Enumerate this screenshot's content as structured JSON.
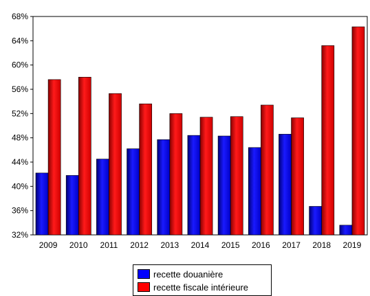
{
  "chart_data": {
    "type": "bar",
    "categories": [
      "2009",
      "2010",
      "2011",
      "2012",
      "2013",
      "2014",
      "2015",
      "2016",
      "2017",
      "2018",
      "2019"
    ],
    "series": [
      {
        "name": "recette douanière",
        "color": "#0000ff",
        "values": [
          42.2,
          41.8,
          44.5,
          46.2,
          47.7,
          48.4,
          48.3,
          46.4,
          48.6,
          36.7,
          33.6
        ]
      },
      {
        "name": "recette fiscale intérieure",
        "color": "#ff0000",
        "values": [
          57.6,
          58.0,
          55.3,
          53.6,
          52.0,
          51.4,
          51.5,
          53.4,
          51.3,
          63.2,
          66.3
        ]
      }
    ],
    "ylim": [
      32,
      68
    ],
    "yticks": [
      32,
      36,
      40,
      44,
      48,
      52,
      56,
      60,
      64,
      68
    ],
    "ytick_labels": [
      "32%",
      "36%",
      "40%",
      "44%",
      "48%",
      "52%",
      "56%",
      "60%",
      "64%",
      "68%"
    ],
    "title": "",
    "xlabel": "",
    "ylabel": "",
    "grid": false,
    "legend": "bottom-center"
  },
  "legend": {
    "items": [
      {
        "label": "recette douanière",
        "color": "#0000ff"
      },
      {
        "label": "recette fiscale intérieure",
        "color": "#ff0000"
      }
    ]
  }
}
